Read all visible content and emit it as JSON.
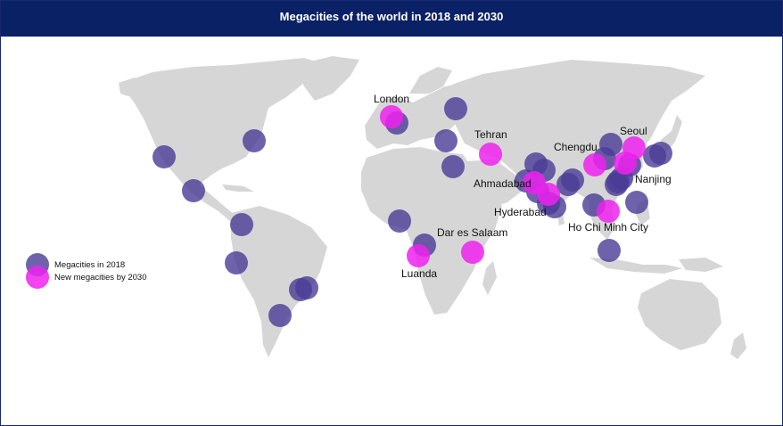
{
  "title": "Megacities of the world in 2018 and 2030",
  "colors": {
    "header_bg": "#0b2166",
    "land": "#d6d6d6",
    "megacity_2018": "#4a3c96",
    "new_megacity_2030": "#ee22ee"
  },
  "legend": {
    "existing": "Megacities in 2018",
    "new": "New megacities by 2030"
  },
  "labels": {
    "london": "London",
    "tehran": "Tehran",
    "chengdu": "Chengdu",
    "seoul": "Seoul",
    "ahmadabad": "Ahmadabad",
    "nanjing": "Nanjing",
    "hyderabad": "Hyderabad",
    "ho_chi_minh_city": "Ho Chi Minh City",
    "dar_es_salaam": "Dar es Salaam",
    "luanda": "Luanda"
  },
  "megacities_2018_count": 33,
  "new_megacities_2030_count": 10
}
